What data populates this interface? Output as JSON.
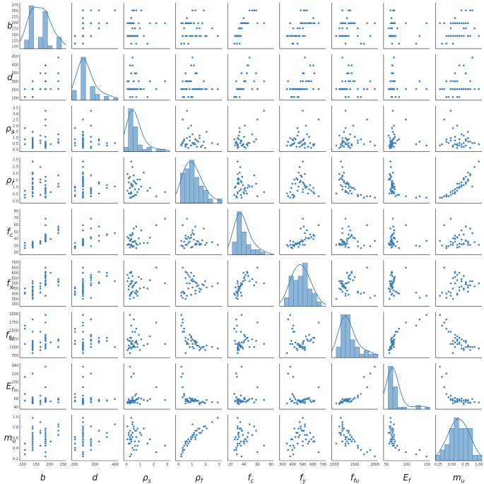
{
  "chart_data": {
    "type": "scatter",
    "layout": "pair-plot",
    "diagonal": "histogram with kde",
    "color": "#3a7fb8",
    "hist_fill": "#8cb6d9",
    "variables": [
      {
        "key": "b",
        "base": "b",
        "sub": "",
        "range": [
          100,
          280
        ],
        "ticks": [
          100,
          150,
          200,
          250
        ]
      },
      {
        "key": "d",
        "base": "d",
        "sub": "",
        "range": [
          180,
          470
        ],
        "ticks": [
          200,
          300,
          400
        ]
      },
      {
        "key": "rho_s",
        "base": "ρ",
        "sub": "s",
        "range": [
          -0.1,
          3.6
        ],
        "ticks": [
          0,
          1,
          2,
          3
        ]
      },
      {
        "key": "rho_f",
        "base": "ρ",
        "sub": "f",
        "range": [
          -0.2,
          3.1
        ],
        "ticks": [
          0,
          1,
          2,
          3
        ]
      },
      {
        "key": "f_c",
        "base": "f",
        "sub": "c",
        "range": [
          15,
          85
        ],
        "ticks": [
          20,
          40,
          60,
          80
        ]
      },
      {
        "key": "f_y",
        "base": "f",
        "sub": "y",
        "range": [
          280,
          720
        ],
        "ticks": [
          300,
          400,
          500,
          600,
          700
        ]
      },
      {
        "key": "f_fu",
        "base": "f",
        "sub": "fu",
        "range": [
          650,
          2150
        ],
        "ticks": [
          1000,
          1500,
          2000
        ]
      },
      {
        "key": "E_f",
        "base": "E",
        "sub": "f",
        "range": [
          25,
          160
        ],
        "ticks": [
          50,
          100,
          150
        ]
      },
      {
        "key": "m_u",
        "base": "m",
        "sub": "u",
        "range": [
          0.05,
          1.12
        ],
        "ticks": [
          0.25,
          0.5,
          0.75,
          1.0
        ]
      }
    ],
    "row_tick_labels": [
      [
        "100",
        "125",
        "150",
        "175",
        "200",
        "225",
        "250",
        "275"
      ],
      [
        "200",
        "250",
        "300",
        "350",
        "400",
        "450"
      ],
      [
        "0.0",
        "0.5",
        "1.0",
        "1.5",
        "2.0",
        "2.5",
        "3.0",
        "3.5"
      ],
      [
        "0.0",
        "0.5",
        "1.0",
        "1.5",
        "2.0",
        "2.5",
        "3.0"
      ],
      [
        "20",
        "30",
        "40",
        "50",
        "60",
        "70",
        "80"
      ],
      [
        "300",
        "350",
        "400",
        "450",
        "500",
        "550",
        "600",
        "650",
        "700"
      ],
      [
        "750",
        "1000",
        "1250",
        "1500",
        "1750",
        "2000"
      ],
      [
        "40",
        "60",
        "80",
        "100",
        "120",
        "140"
      ],
      [
        "0.2",
        "0.4",
        "0.6",
        "0.8",
        "1.0"
      ]
    ],
    "col_tick_labels": [
      [
        "100",
        "150",
        "200",
        "250"
      ],
      [
        "200",
        "300",
        "400"
      ],
      [
        "0",
        "1",
        "2",
        "3"
      ],
      [
        "0",
        "1",
        "2",
        "3"
      ],
      [
        "20",
        "40",
        "60",
        "80"
      ],
      [
        "300",
        "400",
        "500",
        "600",
        "700"
      ],
      [
        "1000",
        "1500",
        "2000"
      ],
      [
        "50",
        "100",
        "150"
      ],
      [
        "0.25",
        "0.50",
        "0.75",
        "1.00"
      ]
    ],
    "samples": [
      [
        150,
        250,
        0.5,
        1.2,
        30,
        400,
        1100,
        50,
        0.55
      ],
      [
        150,
        250,
        0.8,
        0.8,
        35,
        500,
        1000,
        45,
        0.5
      ],
      [
        200,
        300,
        0.3,
        0.5,
        40,
        550,
        1200,
        55,
        0.45
      ],
      [
        180,
        250,
        1.2,
        1.5,
        32,
        450,
        900,
        40,
        0.7
      ],
      [
        150,
        200,
        0.6,
        0.3,
        28,
        420,
        1500,
        60,
        0.35
      ],
      [
        200,
        400,
        0.4,
        0.9,
        45,
        600,
        1300,
        50,
        0.6
      ],
      [
        250,
        300,
        0.7,
        1.8,
        55,
        480,
        1000,
        45,
        0.85
      ],
      [
        150,
        250,
        1.0,
        0.6,
        30,
        380,
        1100,
        55,
        0.4
      ],
      [
        200,
        250,
        0.5,
        1.1,
        38,
        520,
        950,
        48,
        0.65
      ],
      [
        120,
        200,
        0.9,
        0.4,
        25,
        400,
        1600,
        70,
        0.3
      ],
      [
        150,
        250,
        1.5,
        2.0,
        33,
        460,
        1050,
        52,
        0.8
      ],
      [
        200,
        300,
        0.2,
        0.7,
        42,
        580,
        1250,
        46,
        0.55
      ],
      [
        180,
        350,
        0.8,
        1.3,
        36,
        500,
        1150,
        50,
        0.75
      ],
      [
        150,
        250,
        0.4,
        0.5,
        30,
        350,
        800,
        42,
        0.45
      ],
      [
        200,
        250,
        2.5,
        0.3,
        60,
        650,
        1800,
        90,
        0.25
      ],
      [
        250,
        450,
        0.6,
        1.0,
        48,
        520,
        1000,
        55,
        0.9
      ],
      [
        150,
        250,
        0.3,
        1.6,
        31,
        440,
        950,
        44,
        0.7
      ],
      [
        200,
        300,
        1.1,
        0.8,
        40,
        560,
        1400,
        58,
        0.5
      ],
      [
        120,
        250,
        0.5,
        0.2,
        29,
        410,
        1700,
        120,
        0.2
      ],
      [
        200,
        250,
        0.7,
        1.4,
        35,
        480,
        1050,
        50,
        0.8
      ],
      [
        150,
        200,
        0.4,
        0.9,
        26,
        390,
        1200,
        48,
        0.55
      ],
      [
        200,
        300,
        3.2,
        0.6,
        70,
        500,
        1100,
        52,
        0.4
      ],
      [
        180,
        250,
        0.6,
        2.4,
        34,
        470,
        1000,
        46,
        0.95
      ],
      [
        150,
        250,
        0.9,
        1.2,
        32,
        430,
        1150,
        54,
        0.6
      ],
      [
        200,
        350,
        0.5,
        0.5,
        44,
        610,
        1300,
        49,
        0.5
      ],
      [
        150,
        250,
        0.2,
        1.9,
        30,
        520,
        900,
        43,
        0.85
      ],
      [
        250,
        250,
        1.3,
        1.0,
        52,
        540,
        1250,
        56,
        0.65
      ],
      [
        150,
        300,
        0.7,
        0.3,
        28,
        360,
        1900,
        130,
        0.3
      ],
      [
        200,
        250,
        0.4,
        1.7,
        37,
        490,
        1000,
        47,
        0.75
      ],
      [
        120,
        200,
        1.8,
        0.7,
        33,
        450,
        1100,
        50,
        0.45
      ],
      [
        150,
        250,
        0.5,
        2.8,
        30,
        500,
        950,
        45,
        1.05
      ],
      [
        200,
        400,
        0.6,
        1.1,
        46,
        570,
        1200,
        51,
        0.7
      ],
      [
        180,
        250,
        0.8,
        0.4,
        35,
        410,
        1500,
        65,
        0.4
      ],
      [
        150,
        250,
        0.3,
        1.3,
        31,
        470,
        1050,
        49,
        0.65
      ],
      [
        200,
        300,
        2.0,
        0.9,
        41,
        530,
        1350,
        55,
        0.55
      ],
      [
        220,
        250,
        0.5,
        0.6,
        39,
        600,
        1150,
        48,
        0.5
      ],
      [
        150,
        250,
        1.0,
        1.5,
        30,
        420,
        1000,
        44,
        0.8
      ],
      [
        200,
        250,
        0.4,
        0.2,
        36,
        380,
        2050,
        150,
        0.15
      ],
      [
        150,
        200,
        0.6,
        1.0,
        27,
        460,
        1100,
        50,
        0.6
      ],
      [
        250,
        350,
        0.9,
        1.2,
        58,
        510,
        1200,
        53,
        0.75
      ]
    ]
  }
}
